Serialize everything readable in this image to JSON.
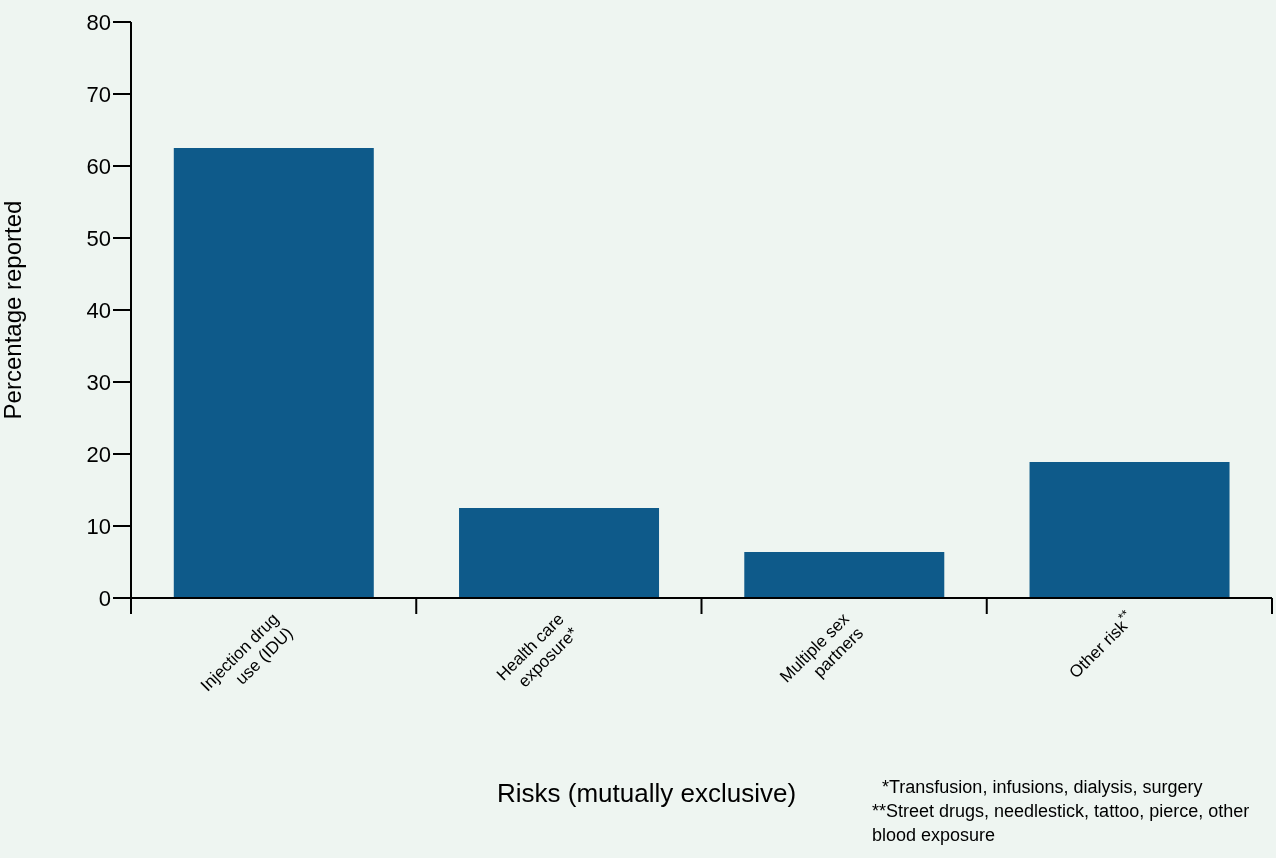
{
  "chart_data": {
    "type": "bar",
    "xlabel": "Risks (mutually exclusive)",
    "ylabel": "Percentage reported",
    "categories": [
      "Injection drug use (IDU)",
      "Health care exposure*",
      "Multiple sex partners",
      "Other risk$^{**}$"
    ],
    "values": [
      62.5,
      12.5,
      6.4,
      18.9
    ],
    "color": "#0e5a8a",
    "ylim": [
      0,
      80
    ],
    "yticks": [
      0,
      10,
      20,
      30,
      40,
      50,
      60,
      70,
      80
    ],
    "grid": false,
    "legend": false,
    "annotations": [
      "*Transfusion, infusions, dialysis, surgery",
      "**Street drugs, needlestick, tattoo, pierce, other blood exposure"
    ]
  }
}
